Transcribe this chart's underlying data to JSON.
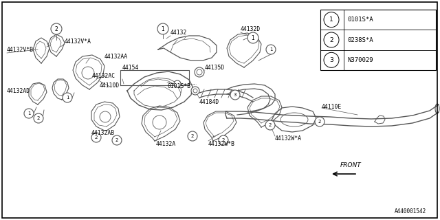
{
  "bg_color": "#ffffff",
  "line_color": "#555555",
  "fig_width": 6.4,
  "fig_height": 3.2,
  "dpi": 100,
  "legend_items": [
    {
      "num": "1",
      "code": "0101S*A"
    },
    {
      "num": "2",
      "code": "0238S*A"
    },
    {
      "num": "3",
      "code": "N370029"
    }
  ],
  "doc_num": "A440001542"
}
